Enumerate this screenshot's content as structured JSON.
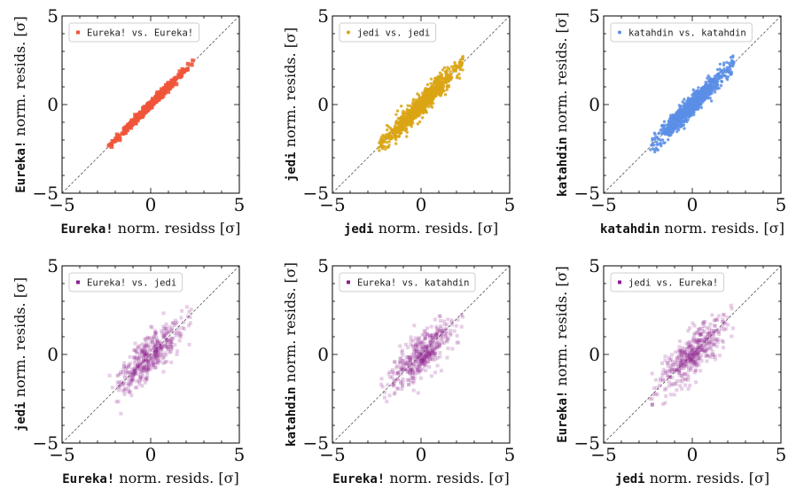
{
  "chart_data": [
    {
      "type": "scatter",
      "legend": "Eureka! vs. Eureka!",
      "legend_position": "top-left",
      "color": "#f0553a",
      "xlabel": {
        "mono": "Eureka!",
        "text": " norm. residss [σ]"
      },
      "ylabel": {
        "mono": "Eureka!",
        "text": " norm. resids. [σ]"
      },
      "xlim": [
        -5,
        5
      ],
      "ylim": [
        -5,
        5
      ],
      "xticks": [
        "−5",
        "0",
        "5"
      ],
      "yticks": [
        "−5",
        "0",
        "5"
      ],
      "n_points": 320,
      "spread": 0.11,
      "x_std": 1.0,
      "alpha": 0.9,
      "marker": "square"
    },
    {
      "type": "scatter",
      "legend": "jedi vs. jedi",
      "legend_position": "top-left",
      "color": "#d9a514",
      "xlabel": {
        "mono": "jedi",
        "text": " norm. resids. [σ]"
      },
      "ylabel": {
        "mono": "jedi",
        "text": " norm. resids. [σ]"
      },
      "xlim": [
        -5,
        5
      ],
      "ylim": [
        -5,
        5
      ],
      "xticks": [
        "−5",
        "0",
        "5"
      ],
      "yticks": [
        "−5",
        "0",
        "5"
      ],
      "n_points": 900,
      "spread": 0.3,
      "x_std": 1.0,
      "alpha": 0.85,
      "marker": "dot"
    },
    {
      "type": "scatter",
      "legend": "katahdin vs. katahdin",
      "legend_position": "top-left",
      "color": "#5b8ee6",
      "xlabel": {
        "mono": "katahdin",
        "text": " norm. resids. [σ]"
      },
      "ylabel": {
        "mono": "katahdin",
        "text": " norm. resids. [σ]"
      },
      "xlim": [
        -5,
        5
      ],
      "ylim": [
        -5,
        5
      ],
      "xticks": [
        "−5",
        "0",
        "5"
      ],
      "yticks": [
        "−5",
        "0",
        "5"
      ],
      "n_points": 900,
      "spread": 0.28,
      "x_std": 1.0,
      "alpha": 0.85,
      "marker": "dot"
    },
    {
      "type": "scatter",
      "legend": "Eureka! vs. jedi",
      "legend_position": "top-left",
      "color": "#8b1f8f",
      "xlabel": {
        "mono": "Eureka!",
        "text": " norm. resids. [σ]"
      },
      "ylabel": {
        "mono": "jedi",
        "text": " norm. resids. [σ]"
      },
      "xlim": [
        -5,
        5
      ],
      "ylim": [
        -5,
        5
      ],
      "xticks": [
        "−5",
        "0",
        "5"
      ],
      "yticks": [
        "−5",
        "0",
        "5"
      ],
      "n_points": 420,
      "spread": 0.6,
      "x_std": 0.95,
      "alpha": 0.22,
      "marker": "square"
    },
    {
      "type": "scatter",
      "legend": "Eureka! vs. katahdin",
      "legend_position": "top-left",
      "color": "#8b1f8f",
      "xlabel": {
        "mono": "Eureka!",
        "text": " norm. resids. [σ]"
      },
      "ylabel": {
        "mono": "katahdin",
        "text": " norm. resids. [σ]"
      },
      "xlim": [
        -5,
        5
      ],
      "ylim": [
        -5,
        5
      ],
      "xticks": [
        "−5",
        "0",
        "5"
      ],
      "yticks": [
        "−5",
        "0",
        "5"
      ],
      "n_points": 420,
      "spread": 0.6,
      "x_std": 0.95,
      "alpha": 0.22,
      "marker": "square"
    },
    {
      "type": "scatter",
      "legend": "jedi vs. Eureka!",
      "legend_position": "top-left",
      "color": "#8b1f8f",
      "xlabel": {
        "mono": "jedi",
        "text": " norm. resids. [σ]"
      },
      "ylabel": {
        "mono": "Eureka!",
        "text": " norm. resids. [σ]"
      },
      "xlim": [
        -5,
        5
      ],
      "ylim": [
        -5,
        5
      ],
      "xticks": [
        "−5",
        "0",
        "5"
      ],
      "yticks": [
        "−5",
        "0",
        "5"
      ],
      "n_points": 420,
      "spread": 0.6,
      "x_std": 0.95,
      "alpha": 0.22,
      "marker": "square"
    }
  ]
}
